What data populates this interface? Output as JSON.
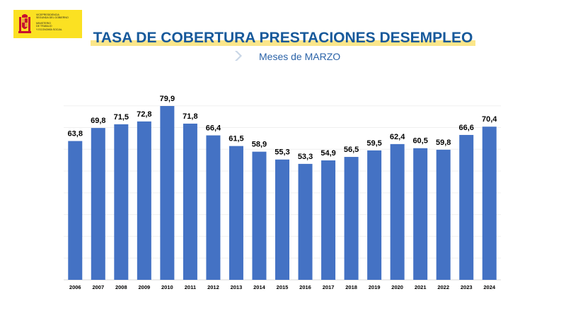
{
  "logo": {
    "line1": "VICEPRESIDENCIA",
    "line2": "SEGUNDA DEL GOBIERNO",
    "line3": "MINISTERIO",
    "line4": "DE TRABAJO",
    "line5": "Y ECONOMÍA SOCIAL"
  },
  "header": {
    "title": "TASA DE COBERTURA PRESTACIONES DESEMPLEO",
    "subtitle": "Meses de MARZO"
  },
  "colors": {
    "bar": "#4472c4",
    "title": "#17599b",
    "highlight": "#fbe68a",
    "logo_bg": "#fbe122"
  },
  "chart_data": {
    "type": "bar",
    "title": "TASA DE COBERTURA PRESTACIONES DESEMPLEO",
    "subtitle": "Meses de MARZO",
    "categories": [
      "2006",
      "2007",
      "2008",
      "2009",
      "2010",
      "2011",
      "2012",
      "2013",
      "2014",
      "2015",
      "2016",
      "2017",
      "2018",
      "2019",
      "2020",
      "2021",
      "2022",
      "2023",
      "2024"
    ],
    "values": [
      63.8,
      69.8,
      71.5,
      72.8,
      79.9,
      71.8,
      66.4,
      61.5,
      58.9,
      55.3,
      53.3,
      54.9,
      56.5,
      59.5,
      62.4,
      60.5,
      59.8,
      66.6,
      70.4
    ],
    "labels": [
      "63,8",
      "69,8",
      "71,5",
      "72,8",
      "79,9",
      "71,8",
      "66,4",
      "61,5",
      "58,9",
      "55,3",
      "53,3",
      "54,9",
      "56,5",
      "59,5",
      "62,4",
      "60,5",
      "59,8",
      "66,6",
      "70,4"
    ],
    "ylim": [
      0,
      80
    ],
    "grid": true,
    "legend": "none"
  }
}
